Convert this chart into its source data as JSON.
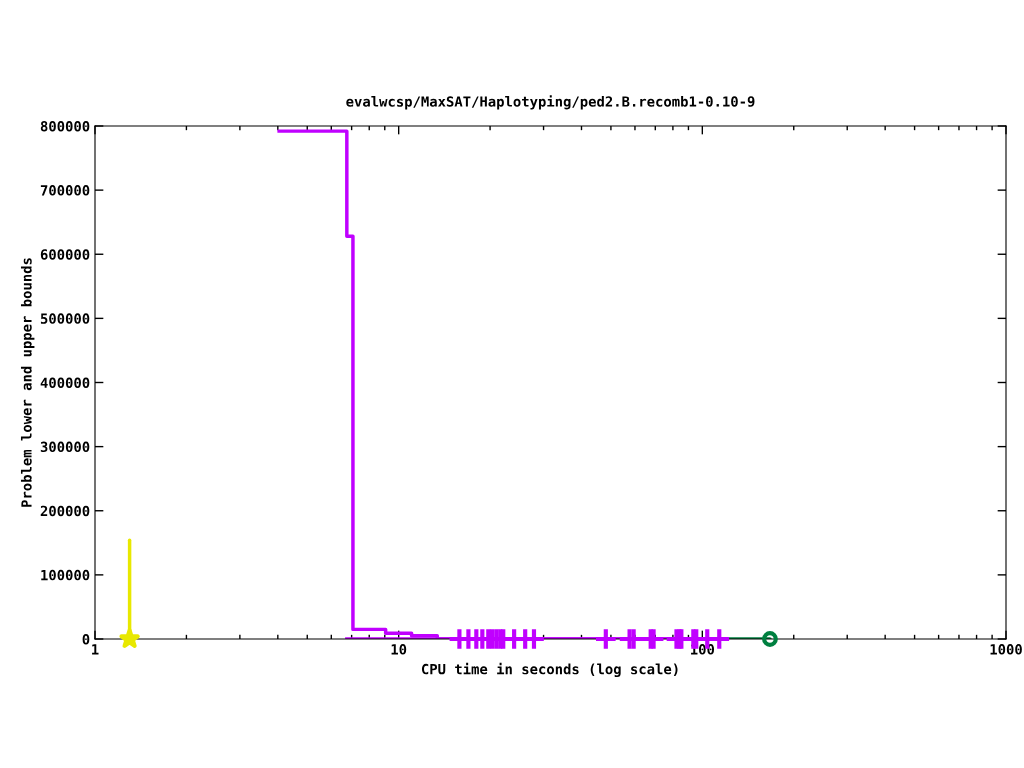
{
  "chart_data": {
    "type": "step",
    "title": "evalwcsp/MaxSAT/Haplotyping/ped2.B.recomb1-0.10-9",
    "xlabel": "CPU time in seconds (log scale)",
    "ylabel": "Problem lower and upper bounds",
    "log": "x",
    "xlim": [
      1,
      1000
    ],
    "xticks": [
      1,
      10,
      100,
      1000
    ],
    "ylim": [
      0,
      800000
    ],
    "yticks": [
      0,
      100000,
      200000,
      300000,
      400000,
      500000,
      600000,
      700000,
      800000
    ],
    "grid": false,
    "series": [
      {
        "color": "#c000ff",
        "marker": "none",
        "x": [
          4.04,
          6.75,
          7.07,
          9.06,
          11.03,
          13.4,
          118
        ],
        "values": [
          792000,
          628000,
          15000,
          9000,
          5000,
          0,
          0
        ]
      },
      {
        "color": "#c000ff",
        "marker": "none",
        "x": [
          6.75,
          118
        ],
        "values": [
          0,
          0
        ]
      },
      {
        "type": "scatter",
        "color": "#c000ff",
        "marker": "cross",
        "x": [
          15.85,
          16.97,
          18.02,
          18.86,
          19.73,
          20.3,
          20.96,
          21.6,
          22.1,
          24.0,
          26.1,
          27.9,
          48.1,
          57.6,
          59.4,
          67.6,
          69.1,
          82.2,
          84.1,
          85.3,
          93.4,
          95.5,
          103.8,
          113.7
        ],
        "values": [
          0,
          0,
          0,
          0,
          0,
          0,
          0,
          0,
          0,
          0,
          0,
          0,
          0,
          0,
          0,
          0,
          0,
          0,
          0,
          0,
          0,
          0,
          0,
          0
        ]
      },
      {
        "type": "line",
        "color": "#e8e800",
        "marker": "none",
        "x": [
          1.3,
          1.3
        ],
        "values": [
          154000,
          0
        ]
      },
      {
        "type": "scatter",
        "color": "#e8e800",
        "marker": "star",
        "x": [
          1.3
        ],
        "values": [
          0
        ]
      },
      {
        "type": "line",
        "color": "#008040",
        "marker": "none",
        "x": [
          118,
          167
        ],
        "values": [
          0,
          0
        ]
      },
      {
        "type": "scatter",
        "color": "#008040",
        "marker": "circle",
        "x": [
          167
        ],
        "values": [
          0
        ]
      }
    ]
  }
}
